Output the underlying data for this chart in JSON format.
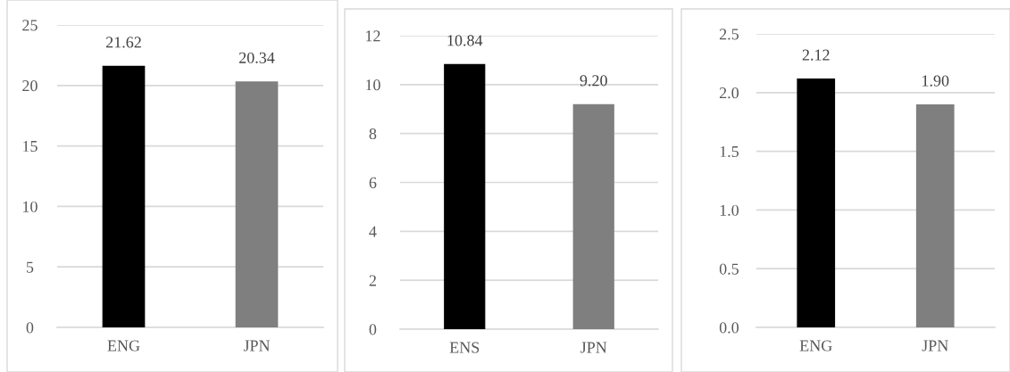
{
  "chart_data": [
    {
      "type": "bar",
      "categories": [
        "ENG",
        "JPN"
      ],
      "values": [
        21.62,
        20.34
      ],
      "colors": [
        "#000000",
        "#7f7f7f"
      ],
      "value_labels": [
        "21.62",
        "20.34"
      ],
      "ylim": [
        0,
        25
      ],
      "yticks": [
        0,
        5,
        10,
        15,
        20,
        25
      ],
      "grid": "y",
      "legend": false
    },
    {
      "type": "bar",
      "categories": [
        "ENS",
        "JPN"
      ],
      "values": [
        10.84,
        9.2
      ],
      "colors": [
        "#000000",
        "#7f7f7f"
      ],
      "value_labels": [
        "10.84",
        "9.20"
      ],
      "ylim": [
        0,
        12
      ],
      "yticks": [
        0,
        2,
        4,
        6,
        8,
        10,
        12
      ],
      "grid": "y",
      "legend": false
    },
    {
      "type": "bar",
      "categories": [
        "ENG",
        "JPN"
      ],
      "values": [
        2.12,
        1.9
      ],
      "colors": [
        "#000000",
        "#7f7f7f"
      ],
      "value_labels": [
        "2.12",
        "1.90"
      ],
      "ylim": [
        0,
        2.5
      ],
      "yticks": [
        {
          "value": 0,
          "label": "0.0"
        },
        0.5,
        {
          "value": 1,
          "label": "1.0"
        },
        1.5,
        {
          "value": 2,
          "label": "2.0"
        },
        2.5
      ],
      "grid": "y",
      "legend": false
    }
  ]
}
